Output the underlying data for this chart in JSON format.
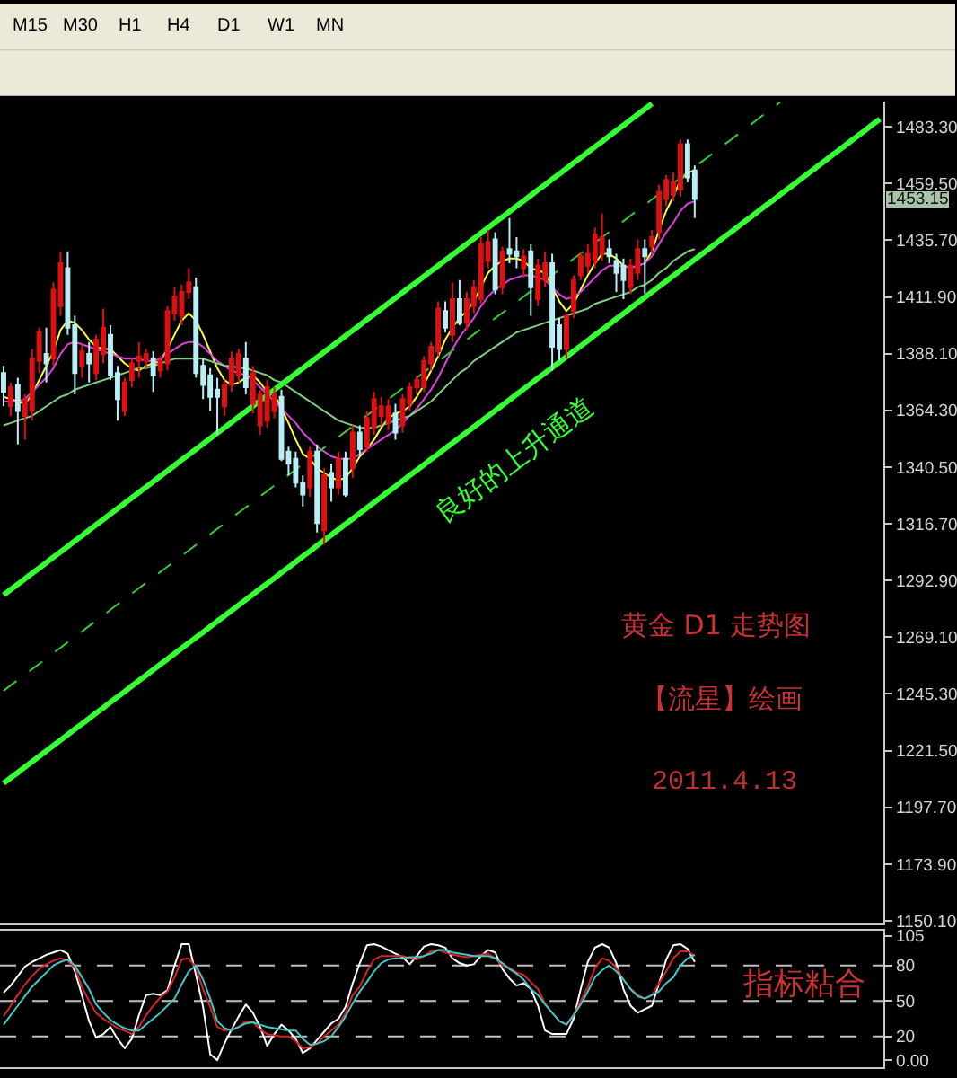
{
  "chart_data": [
    {
      "type": "other",
      "annotations": [
        "M15",
        "M30",
        "H1",
        "H4",
        "D1",
        "W1",
        "MN"
      ]
    },
    {
      "type": "candlestick",
      "title": "黄金 D1 走势图",
      "subtitle": "【流星】绘画",
      "annotations": [
        "2011.4.13",
        "良好的上升通道",
        "1453.15"
      ],
      "categories": [
        null,
        null,
        null,
        null,
        null,
        null,
        null,
        null,
        null,
        null,
        null,
        null,
        null,
        null,
        null,
        null,
        null,
        null,
        null,
        null,
        null,
        null,
        null,
        null,
        null,
        null,
        null,
        null,
        null,
        null,
        null,
        null,
        null,
        null,
        null,
        null,
        null,
        null,
        null,
        null,
        null,
        null,
        null,
        null,
        null,
        null,
        null,
        null,
        null,
        null,
        null,
        null,
        null,
        null,
        null,
        null,
        null,
        null,
        null,
        null,
        null,
        null,
        null,
        null,
        null,
        null,
        null,
        null,
        null,
        null,
        null,
        null,
        null,
        null,
        null,
        null,
        null,
        null,
        null,
        null,
        null,
        null,
        null,
        null,
        null,
        null,
        null,
        null,
        null,
        null,
        null,
        null,
        null,
        null,
        null,
        null,
        null,
        null,
        null,
        null,
        null,
        null,
        null,
        null,
        null,
        null,
        null,
        null,
        null,
        null,
        null,
        null,
        null,
        null,
        null,
        null,
        null,
        null,
        null,
        null,
        null,
        null,
        null,
        null
      ],
      "ohlc": [
        [
          1380,
          1383,
          1366,
          1372
        ],
        [
          1366,
          1376,
          1362,
          1374
        ],
        [
          1375,
          1378,
          1350,
          1364
        ],
        [
          1362,
          1371,
          1352,
          1369
        ],
        [
          1364,
          1390,
          1360,
          1386
        ],
        [
          1385,
          1399,
          1380,
          1397
        ],
        [
          1388,
          1399,
          1376,
          1384
        ],
        [
          1386,
          1418,
          1383,
          1415
        ],
        [
          1408,
          1431,
          1404,
          1426
        ],
        [
          1424,
          1431,
          1396,
          1399
        ],
        [
          1400,
          1404,
          1371,
          1380
        ],
        [
          1383,
          1392,
          1378,
          1389
        ],
        [
          1388,
          1393,
          1376,
          1384
        ],
        [
          1380,
          1396,
          1377,
          1394
        ],
        [
          1388,
          1407,
          1384,
          1399
        ],
        [
          1396,
          1400,
          1377,
          1379
        ],
        [
          1380,
          1383,
          1360,
          1369
        ],
        [
          1364,
          1378,
          1362,
          1376
        ],
        [
          1377,
          1386,
          1374,
          1384
        ],
        [
          1385,
          1393,
          1378,
          1387
        ],
        [
          1385,
          1390,
          1382,
          1388
        ],
        [
          1386,
          1389,
          1372,
          1379
        ],
        [
          1381,
          1387,
          1378,
          1385
        ],
        [
          1384,
          1408,
          1381,
          1406
        ],
        [
          1405,
          1416,
          1402,
          1412
        ],
        [
          1404,
          1417,
          1400,
          1414
        ],
        [
          1414,
          1424,
          1411,
          1418
        ],
        [
          1416,
          1420,
          1378,
          1380
        ],
        [
          1383,
          1386,
          1369,
          1375
        ],
        [
          1379,
          1382,
          1364,
          1370
        ],
        [
          1373,
          1378,
          1354,
          1370
        ],
        [
          1366,
          1377,
          1362,
          1375
        ],
        [
          1375,
          1389,
          1372,
          1386
        ],
        [
          1379,
          1390,
          1376,
          1388
        ],
        [
          1386,
          1393,
          1371,
          1374
        ],
        [
          1367,
          1383,
          1363,
          1380
        ],
        [
          1358,
          1373,
          1354,
          1371
        ],
        [
          1360,
          1377,
          1357,
          1374
        ],
        [
          1364,
          1374,
          1361,
          1371
        ],
        [
          1370,
          1373,
          1343,
          1344
        ],
        [
          1347,
          1349,
          1337,
          1342
        ],
        [
          1344,
          1347,
          1332,
          1334
        ],
        [
          1334,
          1337,
          1324,
          1329
        ],
        [
          1332,
          1349,
          1328,
          1347
        ],
        [
          1347,
          1350,
          1313,
          1317
        ],
        [
          1314,
          1340,
          1308,
          1337
        ],
        [
          1338,
          1342,
          1326,
          1332
        ],
        [
          1332,
          1347,
          1329,
          1344
        ],
        [
          1344,
          1347,
          1328,
          1329
        ],
        [
          1340,
          1358,
          1336,
          1355
        ],
        [
          1355,
          1358,
          1345,
          1348
        ],
        [
          1349,
          1364,
          1347,
          1361
        ],
        [
          1357,
          1372,
          1354,
          1369
        ],
        [
          1362,
          1370,
          1358,
          1366
        ],
        [
          1359,
          1369,
          1356,
          1366
        ],
        [
          1363,
          1367,
          1352,
          1355
        ],
        [
          1358,
          1371,
          1355,
          1369
        ],
        [
          1367,
          1376,
          1364,
          1374
        ],
        [
          1374,
          1379,
          1371,
          1377
        ],
        [
          1374,
          1387,
          1372,
          1385
        ],
        [
          1384,
          1393,
          1381,
          1391
        ],
        [
          1389,
          1410,
          1387,
          1407
        ],
        [
          1406,
          1410,
          1397,
          1399
        ],
        [
          1396,
          1418,
          1393,
          1411
        ],
        [
          1411,
          1419,
          1400,
          1401
        ],
        [
          1401,
          1414,
          1398,
          1411
        ],
        [
          1408,
          1419,
          1405,
          1416
        ],
        [
          1411,
          1437,
          1409,
          1434
        ],
        [
          1427,
          1440,
          1424,
          1435
        ],
        [
          1436,
          1439,
          1413,
          1415
        ],
        [
          1416,
          1433,
          1413,
          1431
        ],
        [
          1432,
          1445,
          1426,
          1430
        ],
        [
          1431,
          1437,
          1424,
          1429
        ],
        [
          1424,
          1432,
          1420,
          1429
        ],
        [
          1431,
          1434,
          1404,
          1416
        ],
        [
          1411,
          1428,
          1408,
          1425
        ],
        [
          1419,
          1431,
          1416,
          1426
        ],
        [
          1426,
          1430,
          1381,
          1391
        ],
        [
          1400,
          1403,
          1385,
          1390
        ],
        [
          1390,
          1405,
          1386,
          1404
        ],
        [
          1406,
          1421,
          1403,
          1419
        ],
        [
          1421,
          1431,
          1419,
          1429
        ],
        [
          1425,
          1434,
          1422,
          1430
        ],
        [
          1427,
          1441,
          1424,
          1438
        ],
        [
          1430,
          1447,
          1427,
          1437
        ],
        [
          1432,
          1436,
          1426,
          1429
        ],
        [
          1427,
          1430,
          1414,
          1422
        ],
        [
          1425,
          1428,
          1411,
          1419
        ],
        [
          1416,
          1428,
          1413,
          1425
        ],
        [
          1422,
          1436,
          1419,
          1432
        ],
        [
          1432,
          1436,
          1413,
          1429
        ],
        [
          1433,
          1440,
          1430,
          1437
        ],
        [
          1439,
          1459,
          1436,
          1456
        ],
        [
          1453,
          1463,
          1450,
          1461
        ],
        [
          1455,
          1464,
          1452,
          1460
        ],
        [
          1457,
          1478,
          1454,
          1476
        ],
        [
          1476,
          1478,
          1460,
          1462
        ],
        [
          1465,
          1467,
          1445,
          1453
        ],
        null,
        null,
        null,
        null,
        null,
        null,
        null,
        null,
        null,
        null,
        null,
        null,
        null,
        null,
        null,
        null,
        null,
        null,
        null,
        null,
        null,
        null,
        null,
        null,
        null,
        null
      ],
      "colors": [
        "#b8eef5",
        "#dd1111",
        "#b8eef5",
        "#dd1111",
        "#dd1111",
        "#dd1111",
        "#b8eef5",
        "#dd1111",
        "#dd1111",
        "#b8eef5",
        "#b8eef5",
        "#dd1111",
        "#b8eef5",
        "#dd1111",
        "#dd1111",
        "#b8eef5",
        "#b8eef5",
        "#dd1111",
        "#dd1111",
        "#dd1111",
        "#dd1111",
        "#b8eef5",
        "#dd1111",
        "#dd1111",
        "#dd1111",
        "#dd1111",
        "#dd1111",
        "#b8eef5",
        "#b8eef5",
        "#b8eef5",
        "#b8eef5",
        "#dd1111",
        "#dd1111",
        "#dd1111",
        "#b8eef5",
        "#dd1111",
        "#dd1111",
        "#dd1111",
        "#dd1111",
        "#b8eef5",
        "#b8eef5",
        "#b8eef5",
        "#b8eef5",
        "#dd1111",
        "#b8eef5",
        "#dd1111",
        "#b8eef5",
        "#dd1111",
        "#b8eef5",
        "#dd1111",
        "#b8eef5",
        "#dd1111",
        "#dd1111",
        "#dd1111",
        "#dd1111",
        "#b8eef5",
        "#dd1111",
        "#dd1111",
        "#dd1111",
        "#dd1111",
        "#dd1111",
        "#dd1111",
        "#b8eef5",
        "#dd1111",
        "#b8eef5",
        "#dd1111",
        "#dd1111",
        "#dd1111",
        "#dd1111",
        "#b8eef5",
        "#dd1111",
        "#b8eef5",
        "#b8eef5",
        "#dd1111",
        "#b8eef5",
        "#dd1111",
        "#dd1111",
        "#b8eef5",
        "#b8eef5",
        "#dd1111",
        "#dd1111",
        "#dd1111",
        "#dd1111",
        "#dd1111",
        "#dd1111",
        "#b8eef5",
        "#b8eef5",
        "#b8eef5",
        "#dd1111",
        "#dd1111",
        "#b8eef5",
        "#dd1111",
        "#dd1111",
        "#dd1111",
        "#dd1111",
        "#dd1111",
        "#b8eef5",
        "#b8eef5",
        null,
        null,
        null,
        null,
        null,
        null,
        null,
        null,
        null,
        null,
        null,
        null,
        null,
        null,
        null,
        null,
        null,
        null,
        null,
        null,
        null,
        null,
        null,
        null,
        null,
        null
      ],
      "series": [
        {
          "type": "line",
          "color": "#ffff33",
          "values": [
            1370,
            1369,
            1368,
            1367,
            1371,
            1377,
            1383,
            1389,
            1398,
            1402,
            1401,
            1398,
            1394,
            1391,
            1390,
            1390,
            1387,
            1384,
            1382,
            1381,
            1383,
            1384,
            1385,
            1390,
            1396,
            1402,
            1405,
            1402,
            1396,
            1389,
            1382,
            1377,
            1375,
            1376,
            1378,
            1379,
            1376,
            1372,
            1371,
            1365,
            1359,
            1352,
            1346,
            1344,
            1340,
            1338,
            1336,
            1335,
            1336,
            1340,
            1345,
            1348,
            1352,
            1357,
            1361,
            1363,
            1364,
            1366,
            1370,
            1375,
            1381,
            1387,
            1394,
            1399,
            1403,
            1406,
            1410,
            1416,
            1422,
            1425,
            1427,
            1428,
            1428,
            1427,
            1424,
            1423,
            1422,
            1416,
            1410,
            1406,
            1409,
            1415,
            1421,
            1426,
            1430,
            1430,
            1428,
            1425,
            1424,
            1425,
            1426,
            1431,
            1440,
            1448,
            1454,
            1461,
            1464,
            1465,
            null,
            null,
            null,
            null,
            null,
            null,
            null,
            null,
            null,
            null,
            null,
            null,
            null,
            null,
            null,
            null,
            null,
            null,
            null,
            null,
            null,
            null,
            null,
            null,
            null,
            null
          ]
        },
        {
          "type": "line",
          "color": "#e040e0",
          "values": [
            1368,
            1368,
            1368,
            1369,
            1372,
            1375,
            1378,
            1382,
            1388,
            1392,
            1393,
            1392,
            1391,
            1390,
            1389,
            1388,
            1387,
            1386,
            1386,
            1386,
            1385,
            1385,
            1386,
            1388,
            1390,
            1392,
            1393,
            1393,
            1391,
            1388,
            1385,
            1383,
            1381,
            1380,
            1379,
            1377,
            1374,
            1371,
            1368,
            1365,
            1362,
            1359,
            1355,
            1352,
            1349,
            1347,
            1345,
            1344,
            1344,
            1344,
            1346,
            1348,
            1350,
            1352,
            1354,
            1356,
            1359,
            1362,
            1365,
            1369,
            1373,
            1378,
            1384,
            1390,
            1395,
            1399,
            1403,
            1408,
            1412,
            1415,
            1417,
            1419,
            1420,
            1421,
            1421,
            1420,
            1419,
            1416,
            1413,
            1411,
            1412,
            1414,
            1417,
            1420,
            1423,
            1425,
            1425,
            1425,
            1424,
            1425,
            1426,
            1429,
            1434,
            1439,
            1443,
            1448,
            1451,
            1452,
            null,
            null,
            null,
            null,
            null,
            null,
            null,
            null,
            null,
            null,
            null,
            null,
            null,
            null,
            null,
            null,
            null,
            null,
            null,
            null,
            null,
            null,
            null,
            null,
            null,
            null
          ]
        },
        {
          "type": "line",
          "color": "#7fd07f",
          "values": [
            1358,
            1359,
            1360,
            1361,
            1362,
            1364,
            1366,
            1368,
            1370,
            1371,
            1373,
            1374,
            1375,
            1376,
            1377,
            1378,
            1379,
            1380,
            1381,
            1382,
            1382,
            1383,
            1384,
            1385,
            1386,
            1386,
            1386,
            1386,
            1386,
            1385,
            1384,
            1383,
            1383,
            1382,
            1382,
            1381,
            1380,
            1379,
            1377,
            1376,
            1374,
            1372,
            1370,
            1368,
            1366,
            1364,
            1362,
            1360,
            1359,
            1358,
            1357,
            1357,
            1357,
            1358,
            1359,
            1360,
            1361,
            1362,
            1364,
            1366,
            1368,
            1371,
            1374,
            1377,
            1380,
            1382,
            1385,
            1387,
            1389,
            1391,
            1393,
            1395,
            1397,
            1398,
            1399,
            1400,
            1401,
            1402,
            1403,
            1404,
            1405,
            1406,
            1407,
            1409,
            1410,
            1411,
            1412,
            1413,
            1414,
            1416,
            1417,
            1419,
            1422,
            1424,
            1427,
            1429,
            1431,
            1432,
            null,
            null,
            null,
            null,
            null,
            null,
            null,
            null,
            null,
            null,
            null,
            null,
            null,
            null,
            null,
            null,
            null,
            null,
            null,
            null,
            null,
            null,
            null,
            null,
            null,
            null
          ]
        },
        {
          "type": "line",
          "color": "#33ff33",
          "values": [
            1286.8,
            1289.1,
            1291.3,
            1293.6,
            1295.9,
            1298.1,
            1300.4,
            1302.7,
            1304.9,
            1307.2,
            1309.5,
            1311.7,
            1314.0,
            1316.3,
            1318.5,
            1320.8,
            1323.1,
            1325.3,
            1327.6,
            1329.9,
            1332.1,
            1334.4,
            1336.7,
            1338.9,
            1341.2,
            1343.5,
            1345.7,
            1348.0,
            1350.2,
            1352.5,
            1354.8,
            1357.0,
            1359.3,
            1361.6,
            1363.8,
            1366.1,
            1368.4,
            1370.6,
            1372.9,
            1375.2,
            1377.4,
            1379.7,
            1382.0,
            1384.2,
            1386.5,
            1388.8,
            1391.0,
            1393.3,
            1395.6,
            1397.8,
            1400.1,
            1402.4,
            1404.6,
            1406.9,
            1409.2,
            1411.4,
            1413.7,
            1416.0,
            1418.2,
            1420.5,
            1422.8,
            1425.0,
            1427.3,
            1429.6,
            1431.8,
            1434.1,
            1436.4,
            1438.6,
            1440.9,
            1443.2,
            1445.4,
            1447.7,
            1450.0,
            1452.2,
            1454.5,
            1456.8,
            1459.0,
            1461.3,
            1463.5,
            1465.8,
            1468.1,
            1470.3,
            1472.6,
            1474.9,
            1477.1,
            1479.4,
            1481.7,
            1483.9,
            1486.2,
            1488.5,
            1490.7,
            1493.0,
            null,
            null,
            null,
            null,
            null,
            null,
            null,
            null,
            null,
            null,
            null,
            null,
            null,
            null,
            null,
            null,
            null,
            null,
            null,
            null,
            null,
            null,
            null,
            null,
            null,
            null,
            null,
            null,
            null,
            null,
            null,
            null
          ]
        },
        {
          "type": "line",
          "color": "#33cc33",
          "line_style": "dashed",
          "values": [
            1246.6,
            1248.9,
            1251.1,
            1253.4,
            1255.7,
            1257.9,
            1260.2,
            1262.5,
            1264.7,
            1267.0,
            1269.3,
            1271.5,
            1273.8,
            1276.1,
            1278.3,
            1280.6,
            1282.9,
            1285.1,
            1287.4,
            1289.7,
            1291.9,
            1294.2,
            1296.5,
            1298.7,
            1301.0,
            1303.3,
            1305.5,
            1307.8,
            1310.0,
            1312.3,
            1314.6,
            1316.8,
            1319.1,
            1321.4,
            1323.6,
            1325.9,
            1328.2,
            1330.4,
            1332.7,
            1335.0,
            1337.2,
            1339.5,
            1341.8,
            1344.0,
            1346.3,
            1348.6,
            1350.8,
            1353.1,
            1355.4,
            1357.6,
            1359.9,
            1362.2,
            1364.4,
            1366.7,
            1369.0,
            1371.2,
            1373.5,
            1375.8,
            1378.0,
            1380.3,
            1382.6,
            1384.8,
            1387.1,
            1389.4,
            1391.6,
            1393.9,
            1396.2,
            1398.4,
            1400.7,
            1403.0,
            1405.2,
            1407.5,
            1409.8,
            1412.0,
            1414.3,
            1416.6,
            1418.8,
            1421.1,
            1423.3,
            1425.6,
            1427.9,
            1430.1,
            1432.4,
            1434.7,
            1436.9,
            1439.2,
            1441.5,
            1443.7,
            1446.0,
            1448.3,
            1450.5,
            1452.8,
            1455.1,
            1457.3,
            1459.6,
            1461.9,
            1464.1,
            1466.4,
            1468.7,
            1470.9,
            1473.2,
            1475.5,
            1477.7,
            1480.0,
            1482.3,
            1484.5,
            1486.8,
            1489.1,
            1491.3,
            1493.6,
            null,
            null,
            null,
            null,
            null,
            null,
            null,
            null,
            null,
            null,
            null,
            null,
            null,
            null
          ]
        },
        {
          "type": "line",
          "color": "#33ff33",
          "values": [
            1207.8,
            1210.1,
            1212.3,
            1214.6,
            1216.9,
            1219.1,
            1221.4,
            1223.7,
            1225.9,
            1228.2,
            1230.5,
            1232.7,
            1235.0,
            1237.3,
            1239.5,
            1241.8,
            1244.1,
            1246.3,
            1248.6,
            1250.9,
            1253.1,
            1255.4,
            1257.7,
            1259.9,
            1262.2,
            1264.5,
            1266.7,
            1269.0,
            1271.2,
            1273.5,
            1275.8,
            1278.0,
            1280.3,
            1282.6,
            1284.8,
            1287.1,
            1289.4,
            1291.6,
            1293.9,
            1296.2,
            1298.4,
            1300.7,
            1303.0,
            1305.2,
            1307.5,
            1309.8,
            1312.0,
            1314.3,
            1316.6,
            1318.8,
            1321.1,
            1323.4,
            1325.6,
            1327.9,
            1330.2,
            1332.4,
            1334.7,
            1337.0,
            1339.2,
            1341.5,
            1343.8,
            1346.0,
            1348.3,
            1350.6,
            1352.8,
            1355.1,
            1357.4,
            1359.6,
            1361.9,
            1364.2,
            1366.4,
            1368.7,
            1371.0,
            1373.2,
            1375.5,
            1377.8,
            1380.0,
            1382.3,
            1384.5,
            1386.8,
            1389.1,
            1391.3,
            1393.6,
            1395.9,
            1398.1,
            1400.4,
            1402.7,
            1404.9,
            1407.2,
            1409.5,
            1411.7,
            1414.0,
            1416.3,
            1418.5,
            1420.8,
            1423.1,
            1425.3,
            1427.6,
            1429.9,
            1432.1,
            1434.4,
            1436.7,
            1438.9,
            1441.2,
            1443.5,
            1445.7,
            1448.0,
            1450.3,
            1452.5,
            1454.8,
            1457.1,
            1459.3,
            1461.6,
            1463.9,
            1466.1,
            1468.4,
            1470.7,
            1472.9,
            1475.2,
            1477.5,
            1479.7,
            1482.0,
            1484.3,
            1486.5
          ]
        }
      ],
      "ylim": [
        1149,
        1494
      ],
      "yticks": [
        {
          "value": 1483.3,
          "label": "1483.30"
        },
        {
          "value": 1459.5,
          "label": "1459.50"
        },
        {
          "value": 1435.7,
          "label": "1435.70"
        },
        {
          "value": 1411.9,
          "label": "1411.90"
        },
        {
          "value": 1388.1,
          "label": "1388.10"
        },
        {
          "value": 1364.3,
          "label": "1364.30"
        },
        {
          "value": 1340.5,
          "label": "1340.50"
        },
        {
          "value": 1316.7,
          "label": "1316.70"
        },
        {
          "value": 1292.9,
          "label": "1292.90"
        },
        {
          "value": 1269.1,
          "label": "1269.10"
        },
        {
          "value": 1245.3,
          "label": "1245.30"
        },
        {
          "value": 1221.5,
          "label": "1221.50"
        },
        {
          "value": 1197.7,
          "label": "1197.70"
        },
        {
          "value": 1173.9,
          "label": "1173.90"
        },
        {
          "value": 1150.1,
          "label": "1150.10"
        }
      ],
      "tick_labels": "y"
    },
    {
      "type": "line",
      "annotations": [
        "指标粘合"
      ],
      "categories": [
        null,
        null,
        null,
        null,
        null,
        null,
        null,
        null,
        null,
        null,
        null,
        null,
        null,
        null,
        null,
        null,
        null,
        null,
        null,
        null,
        null,
        null,
        null,
        null,
        null,
        null,
        null,
        null,
        null,
        null,
        null,
        null,
        null,
        null,
        null,
        null,
        null,
        null,
        null,
        null,
        null,
        null,
        null,
        null,
        null,
        null,
        null,
        null,
        null,
        null,
        null,
        null,
        null,
        null,
        null,
        null,
        null,
        null,
        null,
        null,
        null,
        null,
        null,
        null,
        null,
        null,
        null,
        null,
        null,
        null,
        null,
        null,
        null,
        null,
        null,
        null,
        null,
        null,
        null,
        null,
        null,
        null,
        null,
        null,
        null,
        null,
        null,
        null,
        null,
        null,
        null,
        null,
        null,
        null,
        null,
        null,
        null,
        null,
        null,
        null,
        null,
        null,
        null,
        null,
        null,
        null,
        null,
        null,
        null,
        null,
        null,
        null,
        null,
        null,
        null,
        null,
        null,
        null,
        null,
        null,
        null,
        null,
        null,
        null
      ],
      "series": [
        {
          "color": "#ffffff",
          "values": [
            57,
            63,
            71,
            79,
            83,
            86,
            89,
            91,
            93,
            90,
            75,
            55,
            33,
            19,
            22,
            28,
            18,
            10,
            18,
            38,
            55,
            56,
            55,
            59,
            80,
            98,
            98,
            72,
            45,
            5,
            0,
            14,
            26,
            37,
            47,
            40,
            28,
            12,
            22,
            30,
            25,
            18,
            6,
            10,
            17,
            24,
            31,
            35,
            45,
            65,
            82,
            97,
            98,
            96,
            93,
            90,
            87,
            81,
            88,
            96,
            98,
            97,
            95,
            86,
            82,
            80,
            81,
            88,
            93,
            91,
            77,
            69,
            63,
            65,
            60,
            46,
            25,
            22,
            22,
            22,
            35,
            60,
            83,
            95,
            98,
            95,
            82,
            60,
            46,
            40,
            43,
            46,
            65,
            85,
            97,
            98,
            94,
            83,
            null,
            null,
            null,
            null,
            null,
            null,
            null,
            null,
            null,
            null,
            null,
            null,
            null,
            null,
            null,
            null,
            null,
            null,
            null,
            null,
            null,
            null,
            null,
            null,
            null,
            null
          ]
        },
        {
          "color": "#dd2222",
          "values": [
            37,
            46,
            55,
            64,
            71,
            77,
            81,
            84,
            86,
            84,
            78,
            62,
            50,
            40,
            35,
            31,
            27,
            25,
            22,
            28,
            38,
            46,
            53,
            58,
            70,
            85,
            86,
            78,
            60,
            45,
            28,
            25,
            26,
            28,
            33,
            32,
            26,
            22,
            21,
            20,
            20,
            16,
            10,
            11,
            14,
            20,
            25,
            30,
            40,
            55,
            62,
            75,
            85,
            88,
            88,
            88,
            88,
            86,
            85,
            88,
            92,
            93,
            91,
            89,
            88,
            87,
            88,
            89,
            90,
            86,
            80,
            78,
            74,
            72,
            66,
            60,
            48,
            40,
            33,
            30,
            38,
            50,
            62,
            78,
            86,
            84,
            78,
            68,
            60,
            55,
            52,
            55,
            65,
            75,
            86,
            92,
            92,
            88,
            null,
            null,
            null,
            null,
            null,
            null,
            null,
            null,
            null,
            null,
            null,
            null,
            null,
            null,
            null,
            null,
            null,
            null,
            null,
            null,
            null,
            null,
            null,
            null,
            null,
            null
          ]
        },
        {
          "color": "#40c8c8",
          "values": [
            30,
            38,
            46,
            54,
            62,
            68,
            74,
            80,
            83,
            85,
            80,
            70,
            60,
            47,
            40,
            34,
            30,
            27,
            25,
            25,
            30,
            35,
            40,
            46,
            52,
            64,
            75,
            80,
            68,
            52,
            33,
            27,
            25,
            28,
            31,
            32,
            30,
            28,
            27,
            26,
            25,
            25,
            18,
            13,
            14,
            16,
            20,
            28,
            37,
            48,
            58,
            66,
            75,
            82,
            85,
            86,
            86,
            87,
            87,
            88,
            90,
            93,
            93,
            91,
            90,
            89,
            88,
            88,
            88,
            86,
            82,
            77,
            73,
            68,
            60,
            55,
            47,
            40,
            33,
            30,
            38,
            47,
            58,
            70,
            76,
            80,
            75,
            68,
            60,
            54,
            52,
            55,
            58,
            65,
            70,
            80,
            86,
            89,
            null,
            null,
            null,
            null,
            null,
            null,
            null,
            null,
            null,
            null,
            null,
            null,
            null,
            null,
            null,
            null,
            null,
            null,
            null,
            null,
            null,
            null,
            null,
            null,
            null,
            null
          ]
        }
      ],
      "ylim": [
        -6,
        109.5
      ],
      "yticks": [
        105,
        80,
        50,
        20,
        {
          "value": 0,
          "label": "0.00"
        }
      ],
      "ref_lines": [
        {
          "axis": "y",
          "value": 80,
          "color": "#c0c0c0",
          "line_style": "dashed"
        },
        {
          "axis": "y",
          "value": 50,
          "color": "#c0c0c0",
          "line_style": "dashed"
        },
        {
          "axis": "y",
          "value": 20,
          "color": "#c0c0c0",
          "line_style": "dashed"
        }
      ],
      "tick_labels": "y"
    }
  ]
}
